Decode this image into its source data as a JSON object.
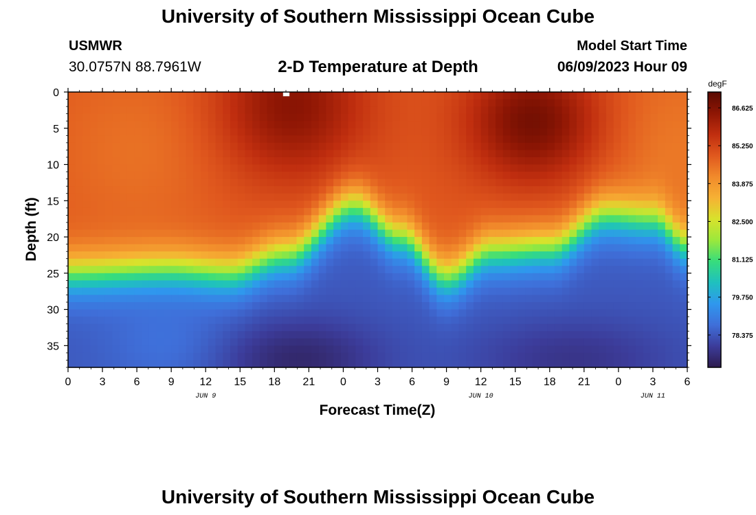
{
  "header": {
    "title": "University of Southern Mississippi Ocean Cube",
    "station_id": "USMWR",
    "station_coords": "30.0757N  88.7961W",
    "subtitle": "2-D Temperature at Depth",
    "model_start_label": "Model Start Time",
    "model_start_value": "06/09/2023 Hour 09"
  },
  "footer": {
    "title": "University of Southern Mississippi Ocean Cube"
  },
  "chart_data": {
    "type": "heatmap",
    "title": "2-D Temperature at Depth",
    "xlabel": "Forecast Time(Z)",
    "ylabel": "Depth (ft)",
    "x_hours_range": [
      0,
      54
    ],
    "y_depth_range": [
      0,
      38
    ],
    "x_tick_hours": [
      0,
      3,
      6,
      9,
      12,
      15,
      18,
      21,
      24,
      27,
      30,
      33,
      36,
      39,
      42,
      45,
      48,
      51,
      54
    ],
    "x_tick_labels": [
      "0",
      "3",
      "6",
      "9",
      "12",
      "15",
      "18",
      "21",
      "0",
      "3",
      "6",
      "9",
      "12",
      "15",
      "18",
      "21",
      "0",
      "3",
      "6"
    ],
    "y_ticks": [
      0,
      5,
      10,
      15,
      20,
      25,
      30,
      35
    ],
    "date_labels": [
      {
        "label": "JUN 9",
        "hour": 12
      },
      {
        "label": "JUN 10",
        "hour": 36
      },
      {
        "label": "JUN 11",
        "hour": 51
      }
    ],
    "colorbar": {
      "unit": "degF",
      "min": 77.2,
      "max": 87.2,
      "tick_values": [
        86.625,
        85.25,
        83.875,
        82.5,
        81.125,
        79.75,
        78.375
      ],
      "tick_labels": [
        "86.625",
        "85.250",
        "83.875",
        "82.500",
        "81.125",
        "79.750",
        "78.375"
      ],
      "colors": [
        "#2d1b4e",
        "#3c3c9a",
        "#3f6fd9",
        "#2f97ee",
        "#1fc0bf",
        "#37dd7c",
        "#9be83c",
        "#d8e22c",
        "#f6b134",
        "#f18a2b",
        "#e0581e",
        "#c02e0f",
        "#8e1604",
        "#5a0a02"
      ]
    },
    "grid": false
  },
  "colors": {
    "background": "#ffffff",
    "axis": "#000000"
  }
}
